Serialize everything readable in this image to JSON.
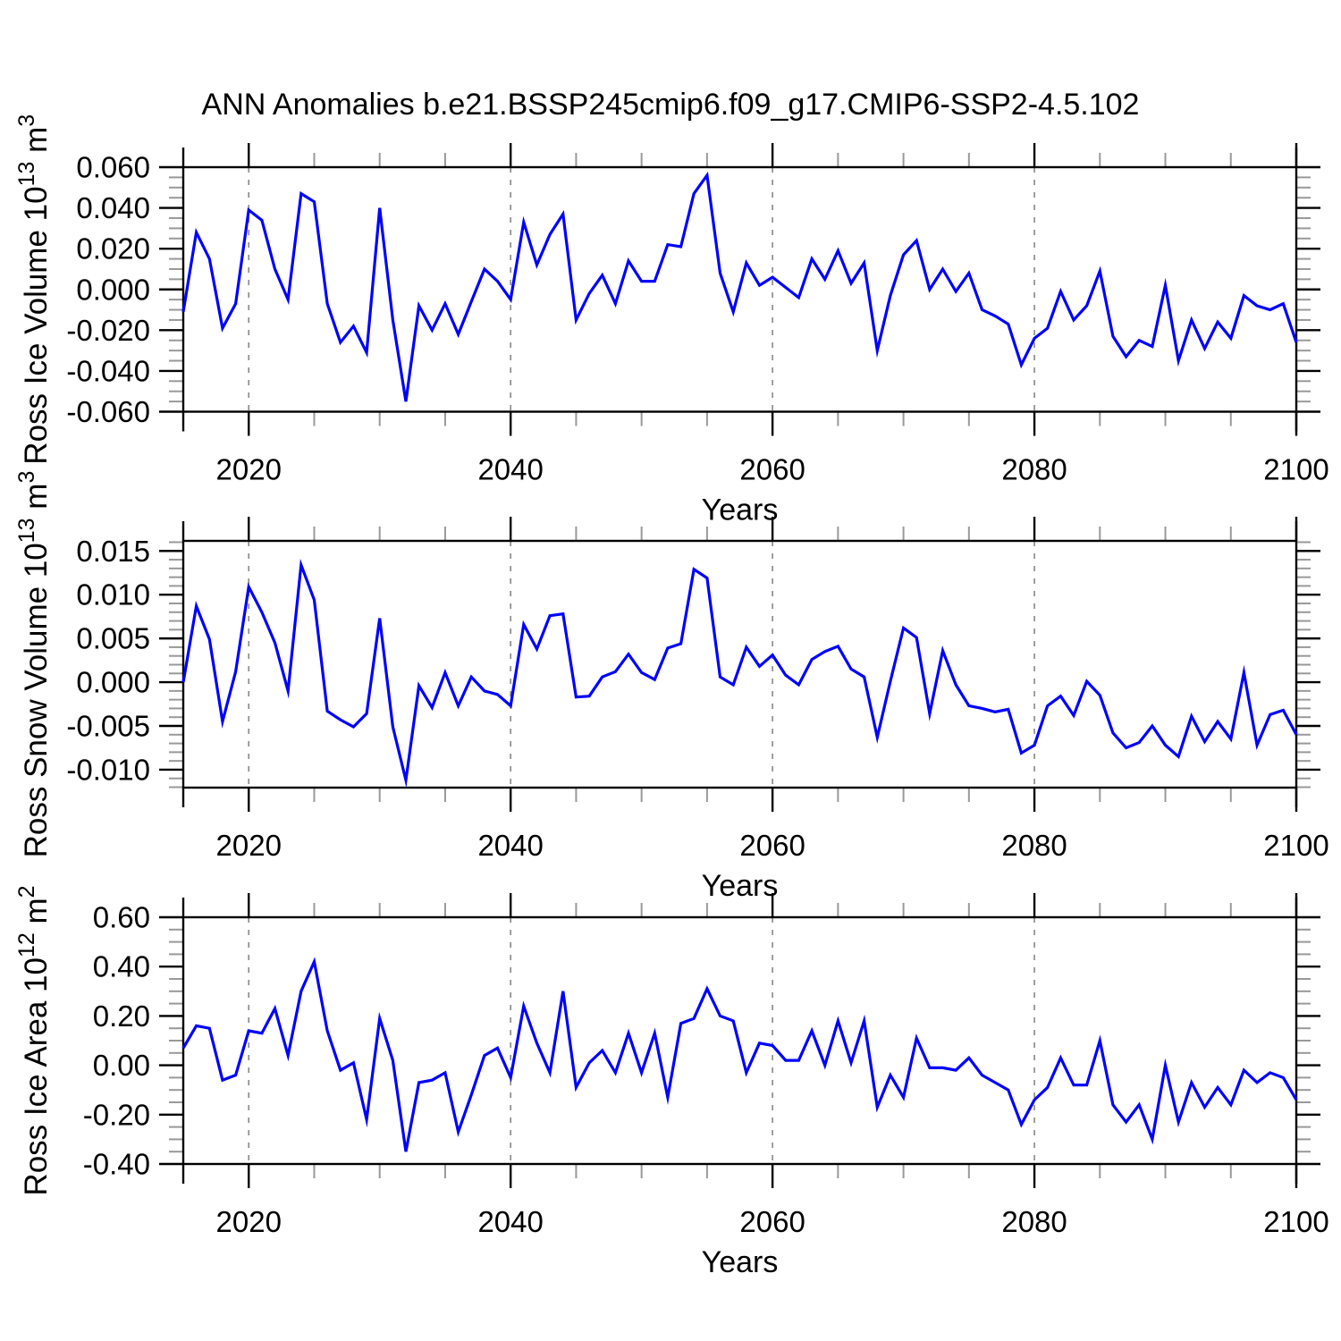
{
  "title": "ANN Anomalies b.e21.BSSP245cmip6.f09_g17.CMIP6-SSP2-4.5.102",
  "colors": {
    "line": "#0000ff",
    "axis": "#000000",
    "minor_tick": "#999999",
    "grid": "#888888",
    "text": "#000000",
    "background": "#ffffff"
  },
  "chart_data": [
    {
      "type": "line",
      "id": "ross-ice-volume",
      "ylabel": "Ross Ice Volume 10^13 m^3",
      "ylabel_parts": [
        {
          "t": "Ross Ice Volume 10"
        },
        {
          "t": "13",
          "sup": true
        },
        {
          "t": " m"
        },
        {
          "t": "3",
          "sup": true
        }
      ],
      "xlabel": "Years",
      "xlim": [
        2015,
        2100
      ],
      "ylim": [
        -0.06,
        0.06
      ],
      "x_start": 2015,
      "x_step": 1,
      "x_major_ticks": [
        2020,
        2040,
        2060,
        2080,
        2100
      ],
      "x_major_labels": [
        "2020",
        "2040",
        "2060",
        "2080",
        "2100"
      ],
      "x_minor_step": 5,
      "x_gridlines": [
        2020,
        2040,
        2060,
        2080
      ],
      "grid_style": "dashed-vertical",
      "legend": "none",
      "y_major_ticks": [
        0.06,
        0.04,
        0.02,
        0,
        -0.02,
        -0.04,
        -0.06
      ],
      "y_major_labels": [
        "0.060",
        "0.040",
        "0.020",
        "0.000",
        "-0.020",
        "-0.040",
        "-0.060"
      ],
      "y_minor_step": 0.005,
      "values": [
        -0.011,
        0.028,
        0.015,
        -0.019,
        -0.007,
        0.039,
        0.034,
        0.01,
        -0.005,
        0.047,
        0.043,
        -0.007,
        -0.026,
        -0.018,
        -0.031,
        0.04,
        -0.015,
        -0.055,
        -0.008,
        -0.02,
        -0.007,
        -0.022,
        -0.006,
        0.01,
        0.004,
        -0.005,
        0.033,
        0.012,
        0.027,
        0.037,
        -0.015,
        -0.002,
        0.007,
        -0.007,
        0.014,
        0.004,
        0.004,
        0.022,
        0.021,
        0.047,
        0.056,
        0.008,
        -0.011,
        0.013,
        0.002,
        0.006,
        0.001,
        -0.004,
        0.015,
        0.005,
        0.019,
        0.003,
        0.013,
        -0.03,
        -0.003,
        0.017,
        0.024,
        0.0,
        0.01,
        -0.001,
        0.008,
        -0.01,
        -0.013,
        -0.017,
        -0.037,
        -0.024,
        -0.019,
        -0.001,
        -0.015,
        -0.008,
        0.009,
        -0.023,
        -0.033,
        -0.025,
        -0.028,
        0.002,
        -0.035,
        -0.015,
        -0.029,
        -0.016,
        -0.024,
        -0.003,
        -0.008,
        -0.01,
        -0.007,
        -0.026
      ]
    },
    {
      "type": "line",
      "id": "ross-snow-volume",
      "ylabel": "Ross Snow Volume 10^13 m^3",
      "ylabel_parts": [
        {
          "t": "Ross Snow Volume 10"
        },
        {
          "t": "13",
          "sup": true
        },
        {
          "t": " m"
        },
        {
          "t": "3",
          "sup": true
        }
      ],
      "xlabel": "Years",
      "xlim": [
        2015,
        2100
      ],
      "ylim": [
        -0.01205,
        0.01615
      ],
      "x_start": 2015,
      "x_step": 1,
      "x_major_ticks": [
        2020,
        2040,
        2060,
        2080,
        2100
      ],
      "x_major_labels": [
        "2020",
        "2040",
        "2060",
        "2080",
        "2100"
      ],
      "x_minor_step": 5,
      "x_gridlines": [
        2020,
        2040,
        2060,
        2080
      ],
      "grid_style": "dashed-vertical",
      "legend": "none",
      "y_major_ticks": [
        0.015,
        0.01,
        0.005,
        0,
        -0.005,
        -0.01
      ],
      "y_major_labels": [
        "0.015",
        "0.010",
        "0.005",
        "0.000",
        "-0.005",
        "-0.010"
      ],
      "y_minor_step": 0.001,
      "values": [
        0.0,
        0.0087,
        0.0049,
        -0.0045,
        0.0012,
        0.0109,
        0.008,
        0.0045,
        -0.001,
        0.0134,
        0.0094,
        -0.0033,
        -0.0043,
        -0.0051,
        -0.0036,
        0.0073,
        -0.0051,
        -0.0112,
        -0.0004,
        -0.0029,
        0.0011,
        -0.0027,
        0.0006,
        -0.001,
        -0.0014,
        -0.0027,
        0.0066,
        0.0038,
        0.0076,
        0.0078,
        -0.0017,
        -0.0016,
        0.0006,
        0.0012,
        0.0032,
        0.0011,
        0.0003,
        0.0039,
        0.0044,
        0.0129,
        0.0119,
        0.0006,
        -0.0003,
        0.004,
        0.0018,
        0.0031,
        0.0008,
        -0.0003,
        0.0026,
        0.0035,
        0.0041,
        0.0015,
        0.0006,
        -0.0063,
        0.0001,
        0.0062,
        0.0051,
        -0.0036,
        0.0036,
        -0.0003,
        -0.0027,
        -0.003,
        -0.0034,
        -0.0031,
        -0.0081,
        -0.0072,
        -0.0027,
        -0.0016,
        -0.0038,
        0.0001,
        -0.0015,
        -0.0058,
        -0.0075,
        -0.0069,
        -0.005,
        -0.0072,
        -0.0085,
        -0.0039,
        -0.0068,
        -0.0045,
        -0.0065,
        0.0011,
        -0.0072,
        -0.0037,
        -0.0032,
        -0.006
      ]
    },
    {
      "type": "line",
      "id": "ross-ice-area",
      "ylabel": "Ross Ice Area 10^12 m^2",
      "ylabel_parts": [
        {
          "t": "Ross Ice Area 10"
        },
        {
          "t": "12",
          "sup": true
        },
        {
          "t": " m"
        },
        {
          "t": "2",
          "sup": true
        }
      ],
      "xlabel": "Years",
      "xlim": [
        2015,
        2100
      ],
      "ylim": [
        -0.4,
        0.6
      ],
      "x_start": 2015,
      "x_step": 1,
      "x_major_ticks": [
        2020,
        2040,
        2060,
        2080,
        2100
      ],
      "x_major_labels": [
        "2020",
        "2040",
        "2060",
        "2080",
        "2100"
      ],
      "x_minor_step": 5,
      "x_gridlines": [
        2020,
        2040,
        2060,
        2080
      ],
      "grid_style": "dashed-vertical",
      "legend": "none",
      "y_major_ticks": [
        0.6,
        0.4,
        0.2,
        0,
        -0.2,
        -0.4
      ],
      "y_major_labels": [
        "0.60",
        "0.40",
        "0.20",
        "0.00",
        "-0.20",
        "-0.40"
      ],
      "y_minor_step": 0.05,
      "values": [
        0.07,
        0.16,
        0.15,
        -0.06,
        -0.04,
        0.14,
        0.13,
        0.23,
        0.04,
        0.3,
        0.42,
        0.14,
        -0.02,
        0.01,
        -0.22,
        0.19,
        0.02,
        -0.35,
        -0.07,
        -0.06,
        -0.03,
        -0.27,
        -0.12,
        0.04,
        0.07,
        -0.05,
        0.24,
        0.09,
        -0.03,
        0.3,
        -0.09,
        0.01,
        0.06,
        -0.03,
        0.13,
        -0.03,
        0.13,
        -0.13,
        0.17,
        0.19,
        0.31,
        0.2,
        0.18,
        -0.03,
        0.09,
        0.08,
        0.02,
        0.02,
        0.14,
        0.0,
        0.18,
        0.01,
        0.18,
        -0.17,
        -0.04,
        -0.13,
        0.11,
        -0.01,
        -0.01,
        -0.02,
        0.03,
        -0.04,
        -0.07,
        -0.1,
        -0.24,
        -0.14,
        -0.09,
        0.03,
        -0.08,
        -0.08,
        0.1,
        -0.16,
        -0.23,
        -0.16,
        -0.3,
        0.0,
        -0.23,
        -0.07,
        -0.17,
        -0.09,
        -0.16,
        -0.02,
        -0.07,
        -0.03,
        -0.05,
        -0.14
      ]
    }
  ]
}
